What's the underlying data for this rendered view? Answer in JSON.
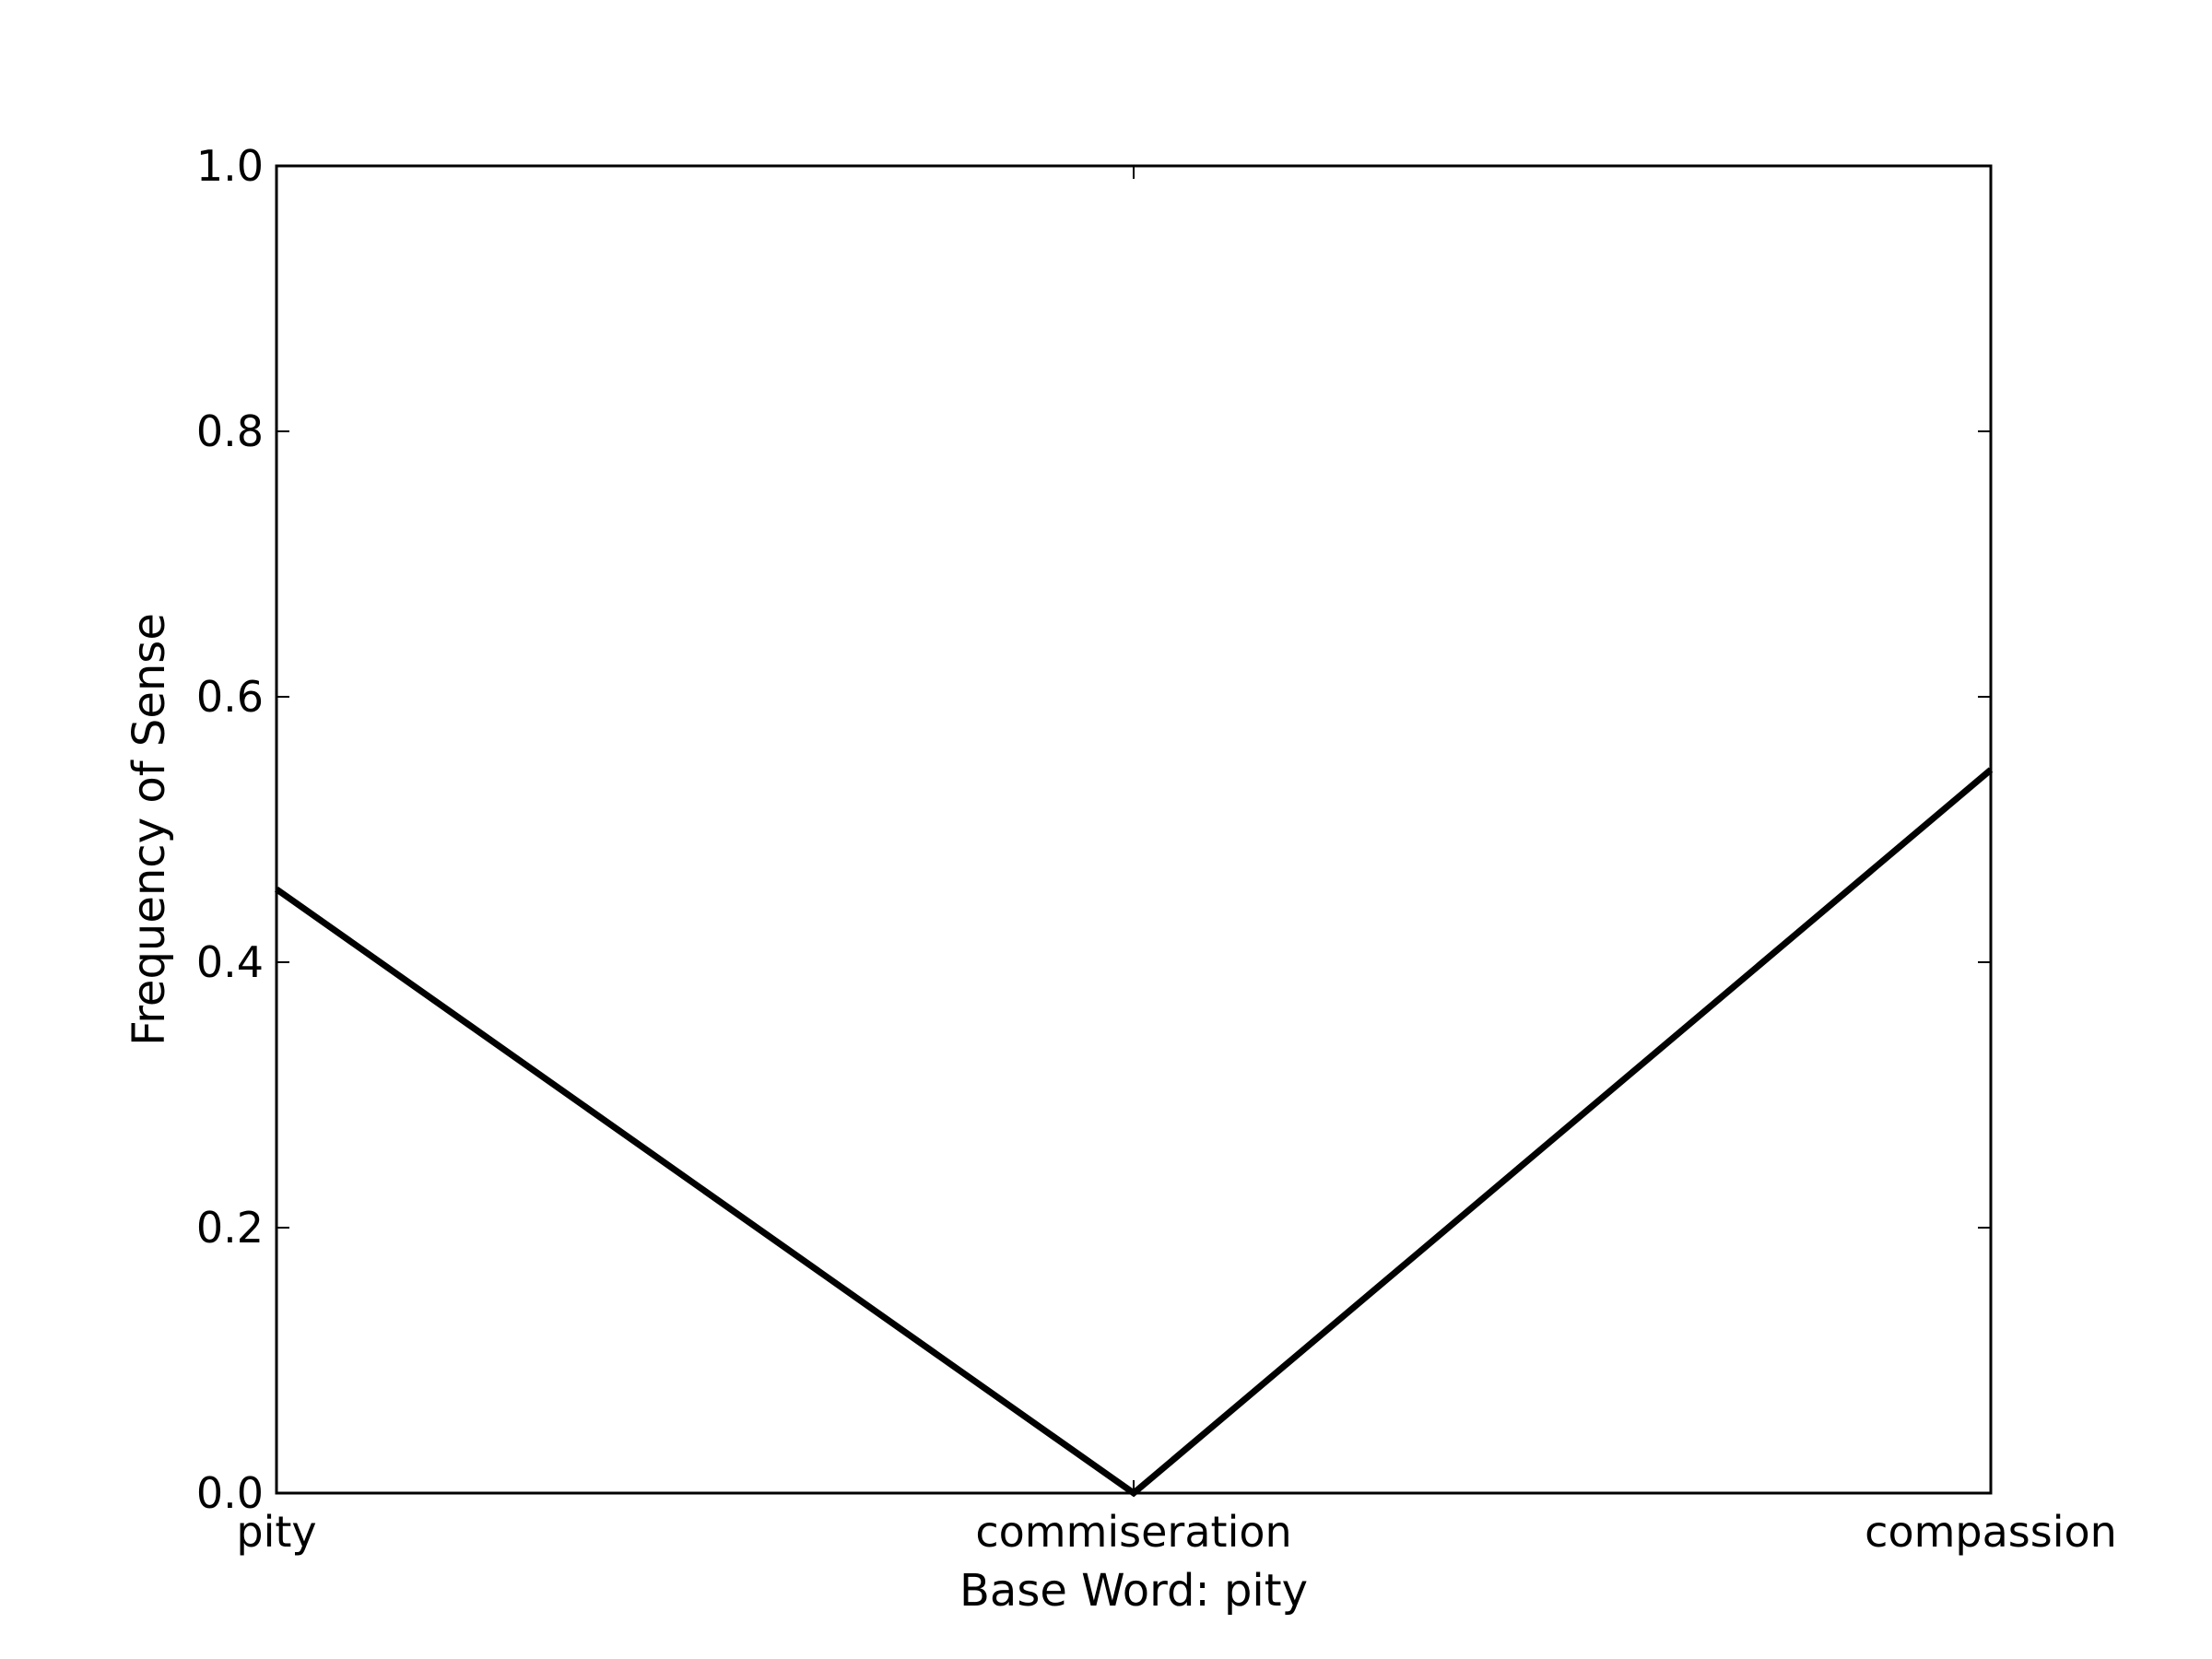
{
  "chart_data": {
    "type": "line",
    "title": "",
    "xlabel": "Base Word: pity",
    "ylabel": "Frequency of Sense",
    "categories": [
      "pity",
      "commiseration",
      "compassion"
    ],
    "series": [
      {
        "values": [
          0.455,
          0.0,
          0.545
        ]
      }
    ],
    "ylim": [
      0,
      1
    ],
    "yticks": [
      "0.0",
      "0.2",
      "0.4",
      "0.6",
      "0.8",
      "1.0"
    ],
    "grid": false,
    "line_color": "#000000"
  }
}
